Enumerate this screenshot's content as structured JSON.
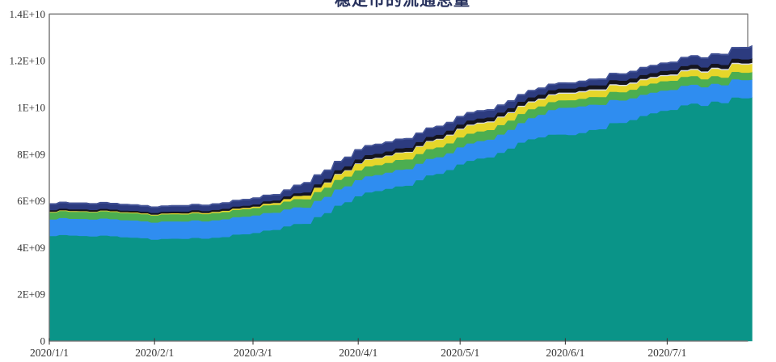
{
  "window": {
    "background_color": "#ffffff"
  },
  "chart_data": {
    "type": "area",
    "stacked": true,
    "title": "稳定币的流通总量",
    "title_color": "#26305c",
    "legend": false,
    "grid": false,
    "plot_background": "#ffffff",
    "border_color": "#6e6e6e",
    "tick_color": "#3c3c3c",
    "label_color": "#333333",
    "top_edge_color": "#4a5a9e",
    "x_axis": {
      "tick_labels": [
        "2020/1/1",
        "2020/2/1",
        "2020/3/1",
        "2020/4/1",
        "2020/5/1",
        "2020/6/1",
        "2020/7/1"
      ],
      "tick_days": [
        0,
        31,
        60,
        91,
        121,
        152,
        182
      ],
      "days_span": 207
    },
    "y_axis": {
      "tick_labels": [
        "0",
        "2E+09",
        "4E+09",
        "6E+09",
        "8E+09",
        "1E+10",
        "1.2E+10",
        "1.4E+10"
      ],
      "tick_values_billions": [
        0,
        2,
        4,
        6,
        8,
        10,
        12,
        14
      ],
      "ylim": [
        0,
        14000000000
      ]
    },
    "unit": "billions (1e9)",
    "control_days": [
      0,
      14,
      32,
      45,
      60,
      68,
      75,
      82,
      91,
      105,
      121,
      135,
      141,
      152,
      166,
      181,
      196,
      207
    ],
    "series": [
      {
        "name": "teal",
        "color": "#0a9488",
        "values_billions": [
          4.53,
          4.5,
          4.37,
          4.4,
          4.6,
          4.88,
          5.05,
          5.6,
          6.3,
          6.71,
          7.58,
          8.2,
          8.72,
          8.79,
          9.3,
          9.9,
          10.24,
          10.45
        ]
      },
      {
        "name": "light-blue",
        "color": "#2f8df0",
        "values_billions": [
          0.72,
          0.72,
          0.74,
          0.75,
          0.75,
          0.72,
          0.7,
          0.69,
          0.69,
          0.7,
          0.73,
          0.8,
          0.9,
          1.2,
          0.98,
          0.86,
          0.76,
          0.78
        ]
      },
      {
        "name": "green",
        "color": "#4cae50",
        "values_billions": [
          0.3,
          0.31,
          0.3,
          0.31,
          0.32,
          0.34,
          0.36,
          0.4,
          0.42,
          0.42,
          0.42,
          0.4,
          0.38,
          0.31,
          0.35,
          0.41,
          0.32,
          0.32
        ]
      },
      {
        "name": "yellow",
        "color": "#e5d62a",
        "values_billions": [
          0.03,
          0.03,
          0.04,
          0.05,
          0.06,
          0.1,
          0.16,
          0.22,
          0.28,
          0.3,
          0.35,
          0.32,
          0.3,
          0.28,
          0.28,
          0.21,
          0.32,
          0.35
        ]
      },
      {
        "name": "pale",
        "color": "#d9dce8",
        "values_billions": [
          0.0,
          0.0,
          0.0,
          0.0,
          0.0,
          0.0,
          0.0,
          0.02,
          0.03,
          0.03,
          0.04,
          0.04,
          0.04,
          0.05,
          0.05,
          0.05,
          0.05,
          0.05
        ]
      },
      {
        "name": "dark",
        "color": "#15151f",
        "values_billions": [
          0.07,
          0.07,
          0.07,
          0.08,
          0.09,
          0.11,
          0.13,
          0.15,
          0.17,
          0.17,
          0.17,
          0.17,
          0.17,
          0.17,
          0.17,
          0.17,
          0.17,
          0.18
        ]
      },
      {
        "name": "navy",
        "color": "#2c3b7f",
        "values_billions": [
          0.28,
          0.28,
          0.26,
          0.26,
          0.28,
          0.25,
          0.43,
          0.38,
          0.42,
          0.4,
          0.35,
          0.32,
          0.3,
          0.24,
          0.3,
          0.35,
          0.44,
          0.55
        ]
      }
    ]
  }
}
